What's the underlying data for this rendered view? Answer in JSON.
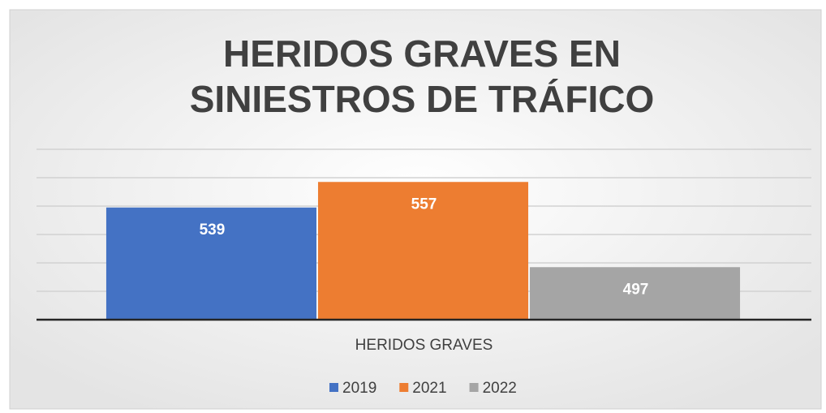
{
  "chart_data": {
    "type": "bar",
    "title": "HERIDOS GRAVES EN SINIESTROS DE TRÁFICO",
    "categories": [
      "HERIDOS GRAVES"
    ],
    "series": [
      {
        "name": "2019",
        "color": "#4472c4",
        "values": [
          539
        ]
      },
      {
        "name": "2021",
        "color": "#ed7d31",
        "values": [
          557
        ]
      },
      {
        "name": "2022",
        "color": "#a5a5a5",
        "values": [
          497
        ]
      }
    ],
    "ylim": [
      460,
      580
    ],
    "yticks": [
      460,
      480,
      500,
      520,
      540,
      560,
      580
    ],
    "grid": true,
    "legend": "bottom"
  }
}
